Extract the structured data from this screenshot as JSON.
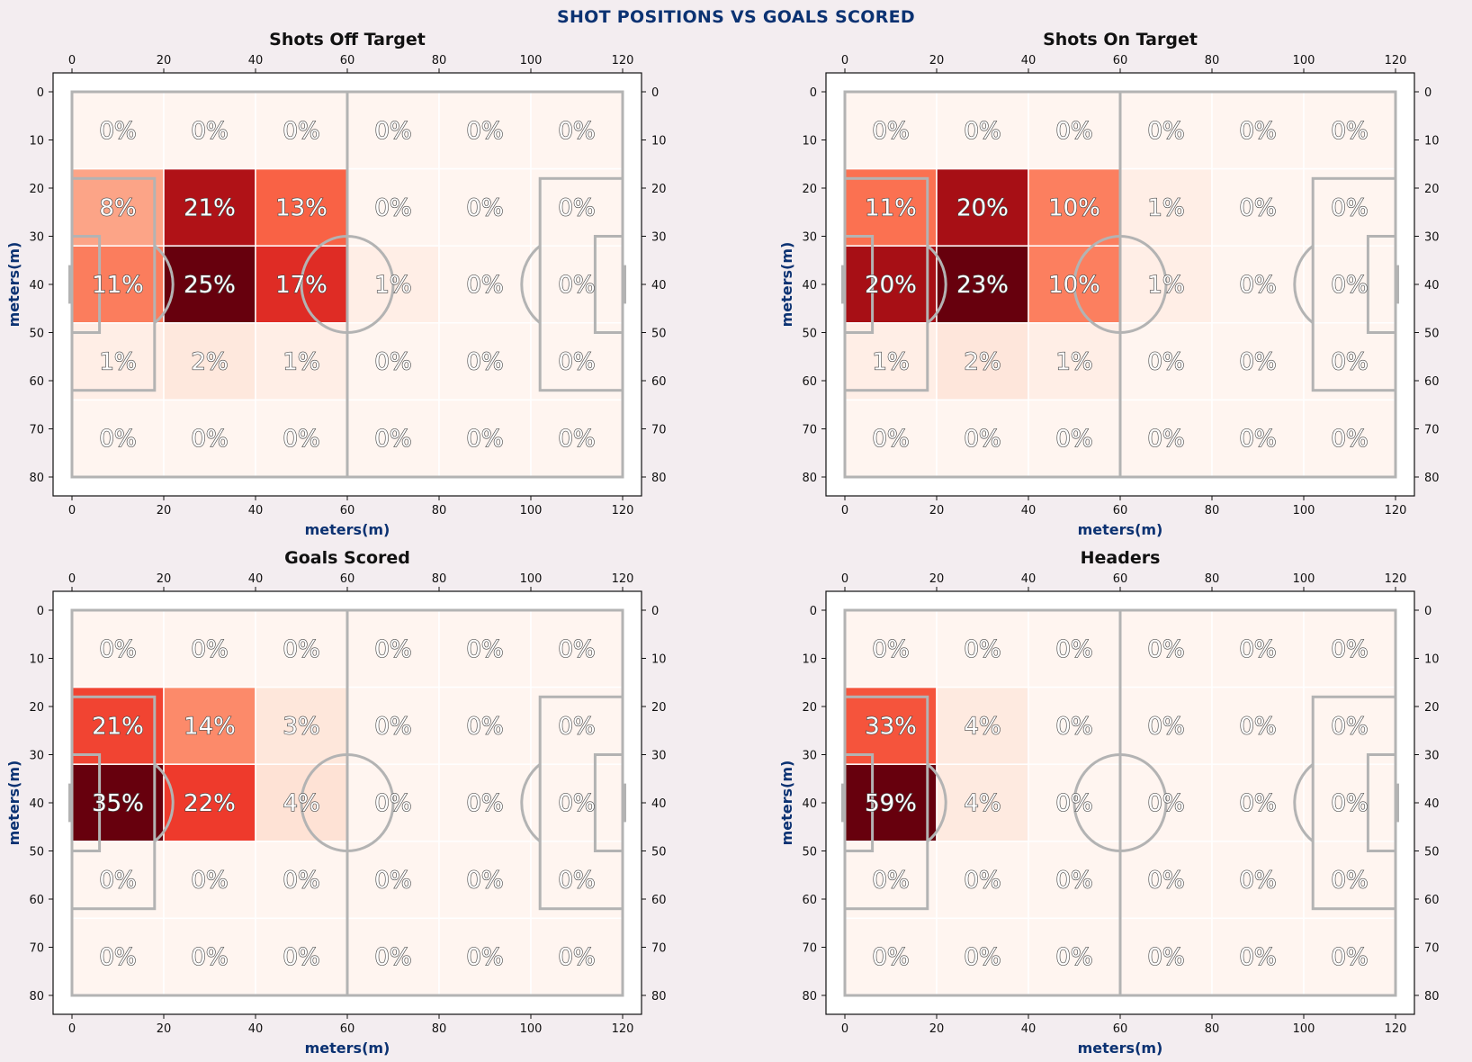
{
  "title": "SHOT POSITIONS VS GOALS SCORED",
  "colors": {
    "title": "#0b3272",
    "axis_label": "#0b3272",
    "pitch_lines": "#b3b3b3",
    "background": "#f3edf0",
    "colormap": "Reds"
  },
  "chart_data": [
    {
      "type": "heatmap",
      "title": "Shots Off Target",
      "xlabel": "meters(m)",
      "ylabel": "meters(m)",
      "xlim": [
        0,
        120
      ],
      "ylim": [
        0,
        80
      ],
      "x_ticks": [
        "0",
        "20",
        "40",
        "60",
        "80",
        "100",
        "120"
      ],
      "y_ticks": [
        "0",
        "10",
        "20",
        "30",
        "40",
        "50",
        "60",
        "70",
        "80"
      ],
      "x_bins": [
        0,
        20,
        40,
        60,
        80,
        100,
        120
      ],
      "y_bins": [
        0,
        16,
        32,
        48,
        64,
        80
      ],
      "labels": [
        [
          "0%",
          "0%",
          "0%",
          "0%",
          "0%",
          "0%"
        ],
        [
          "8%",
          "21%",
          "13%",
          "0%",
          "0%",
          "0%"
        ],
        [
          "11%",
          "25%",
          "17%",
          "1%",
          "0%",
          "0%"
        ],
        [
          "1%",
          "2%",
          "1%",
          "0%",
          "0%",
          "0%"
        ],
        [
          "0%",
          "0%",
          "0%",
          "0%",
          "0%",
          "0%"
        ]
      ],
      "values": [
        [
          0,
          0,
          0,
          0,
          0,
          0
        ],
        [
          8,
          21,
          13,
          0,
          0,
          0
        ],
        [
          11,
          25,
          17,
          1,
          0,
          0
        ],
        [
          1,
          2,
          1,
          0,
          0,
          0
        ],
        [
          0,
          0,
          0,
          0,
          0,
          0
        ]
      ]
    },
    {
      "type": "heatmap",
      "title": "Shots On Target",
      "xlabel": "meters(m)",
      "ylabel": "meters(m)",
      "xlim": [
        0,
        120
      ],
      "ylim": [
        0,
        80
      ],
      "x_ticks": [
        "0",
        "20",
        "40",
        "60",
        "80",
        "100",
        "120"
      ],
      "y_ticks": [
        "0",
        "10",
        "20",
        "30",
        "40",
        "50",
        "60",
        "70",
        "80"
      ],
      "x_bins": [
        0,
        20,
        40,
        60,
        80,
        100,
        120
      ],
      "y_bins": [
        0,
        16,
        32,
        48,
        64,
        80
      ],
      "labels": [
        [
          "0%",
          "0%",
          "0%",
          "0%",
          "0%",
          "0%"
        ],
        [
          "11%",
          "20%",
          "10%",
          "1%",
          "0%",
          "0%"
        ],
        [
          "20%",
          "23%",
          "10%",
          "1%",
          "0%",
          "0%"
        ],
        [
          "1%",
          "2%",
          "1%",
          "0%",
          "0%",
          "0%"
        ],
        [
          "0%",
          "0%",
          "0%",
          "0%",
          "0%",
          "0%"
        ]
      ],
      "values": [
        [
          0,
          0,
          0,
          0,
          0,
          0
        ],
        [
          11,
          20,
          10,
          1,
          0,
          0
        ],
        [
          20,
          23,
          10,
          1,
          0,
          0
        ],
        [
          1,
          2,
          1,
          0,
          0,
          0
        ],
        [
          0,
          0,
          0,
          0,
          0,
          0
        ]
      ]
    },
    {
      "type": "heatmap",
      "title": "Goals Scored",
      "xlabel": "meters(m)",
      "ylabel": "meters(m)",
      "xlim": [
        0,
        120
      ],
      "ylim": [
        0,
        80
      ],
      "x_ticks": [
        "0",
        "20",
        "40",
        "60",
        "80",
        "100",
        "120"
      ],
      "y_ticks": [
        "0",
        "10",
        "20",
        "30",
        "40",
        "50",
        "60",
        "70",
        "80"
      ],
      "x_bins": [
        0,
        20,
        40,
        60,
        80,
        100,
        120
      ],
      "y_bins": [
        0,
        16,
        32,
        48,
        64,
        80
      ],
      "labels": [
        [
          "0%",
          "0%",
          "0%",
          "0%",
          "0%",
          "0%"
        ],
        [
          "21%",
          "14%",
          "3%",
          "0%",
          "0%",
          "0%"
        ],
        [
          "35%",
          "22%",
          "4%",
          "0%",
          "0%",
          "0%"
        ],
        [
          "0%",
          "0%",
          "0%",
          "0%",
          "0%",
          "0%"
        ],
        [
          "0%",
          "0%",
          "0%",
          "0%",
          "0%",
          "0%"
        ]
      ],
      "values": [
        [
          0,
          0,
          0,
          0,
          0,
          0
        ],
        [
          21,
          14,
          3,
          0,
          0,
          0
        ],
        [
          35,
          22,
          4,
          0,
          0,
          0
        ],
        [
          0,
          0,
          0,
          0,
          0,
          0
        ],
        [
          0,
          0,
          0,
          0,
          0,
          0
        ]
      ]
    },
    {
      "type": "heatmap",
      "title": "Headers",
      "xlabel": "meters(m)",
      "ylabel": "meters(m)",
      "xlim": [
        0,
        120
      ],
      "ylim": [
        0,
        80
      ],
      "x_ticks": [
        "0",
        "20",
        "40",
        "60",
        "80",
        "100",
        "120"
      ],
      "y_ticks": [
        "0",
        "10",
        "20",
        "30",
        "40",
        "50",
        "60",
        "70",
        "80"
      ],
      "x_bins": [
        0,
        20,
        40,
        60,
        80,
        100,
        120
      ],
      "y_bins": [
        0,
        16,
        32,
        48,
        64,
        80
      ],
      "labels": [
        [
          "0%",
          "0%",
          "0%",
          "0%",
          "0%",
          "0%"
        ],
        [
          "33%",
          "4%",
          "0%",
          "0%",
          "0%",
          "0%"
        ],
        [
          "59%",
          "4%",
          "0%",
          "0%",
          "0%",
          "0%"
        ],
        [
          "0%",
          "0%",
          "0%",
          "0%",
          "0%",
          "0%"
        ],
        [
          "0%",
          "0%",
          "0%",
          "0%",
          "0%",
          "0%"
        ]
      ],
      "values": [
        [
          0,
          0,
          0,
          0,
          0,
          0
        ],
        [
          33,
          4,
          0,
          0,
          0,
          0
        ],
        [
          59,
          4,
          0,
          0,
          0,
          0
        ],
        [
          0,
          0,
          0,
          0,
          0,
          0
        ],
        [
          0,
          0,
          0,
          0,
          0,
          0
        ]
      ]
    }
  ]
}
